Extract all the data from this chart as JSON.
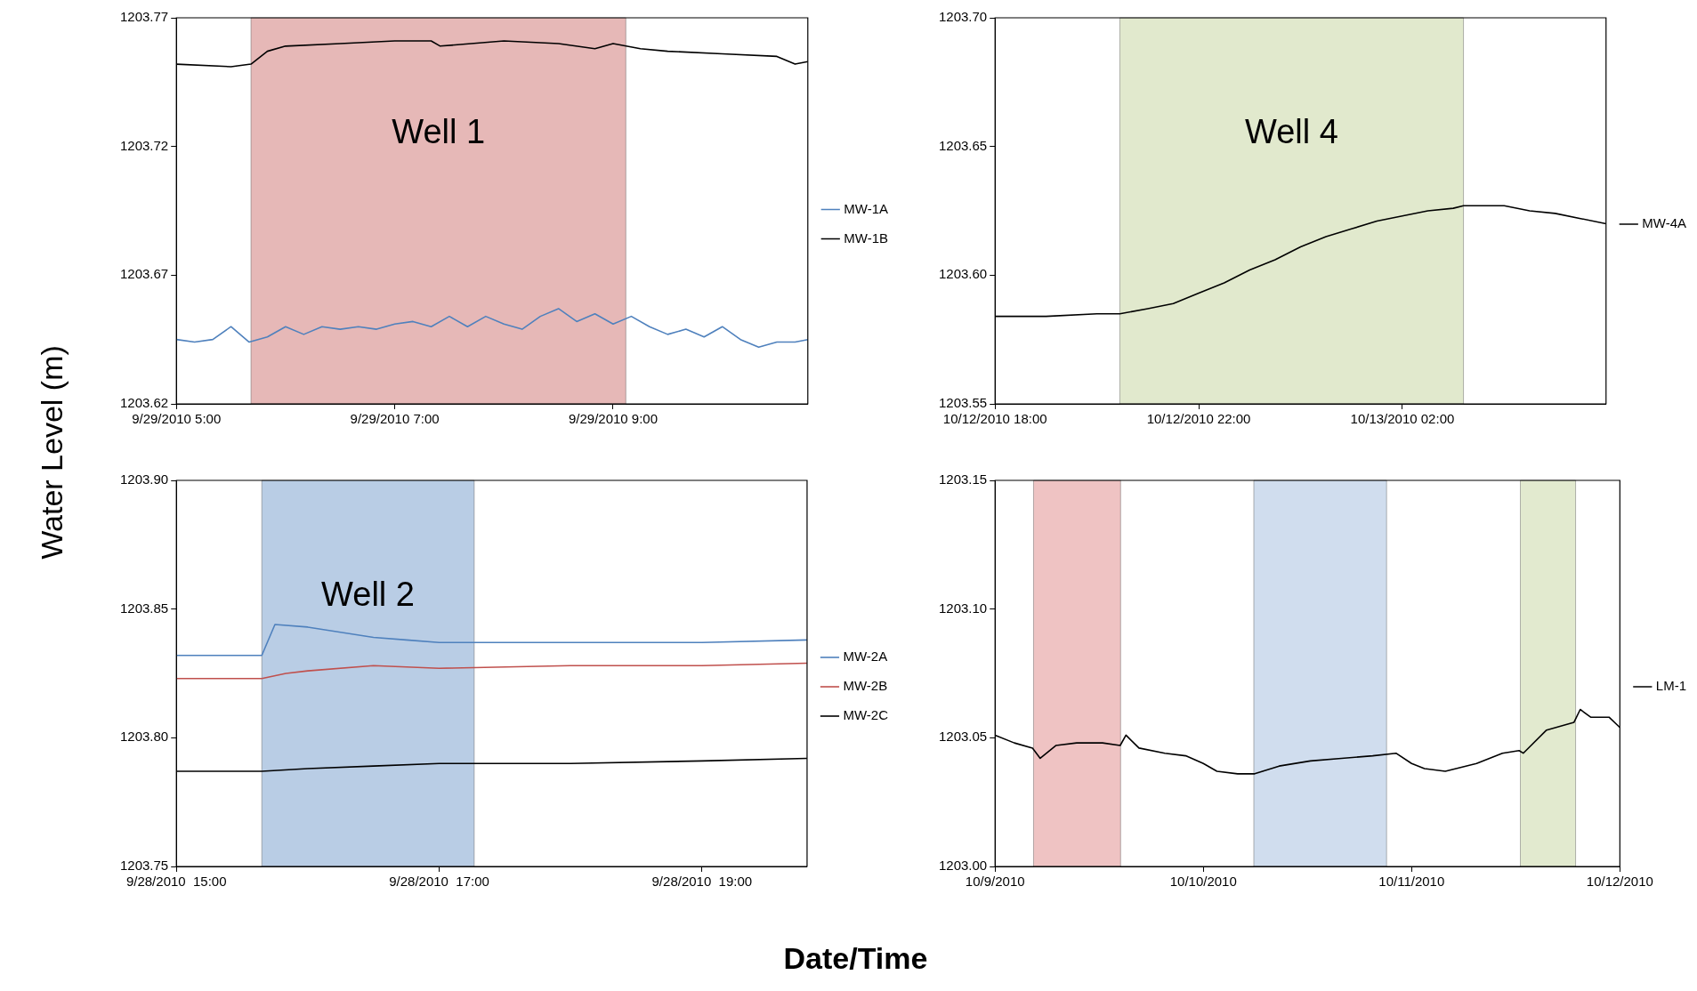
{
  "chart_data": [
    {
      "type": "line",
      "xlabel": "Date/Time",
      "ylabel": "Water Level (m)",
      "legend": "right",
      "marker": "none",
      "line_style": "solid",
      "grid": false,
      "xlim": [
        "2010-09-29T05:00",
        "2010-09-29T10:47"
      ],
      "xticks": [
        {
          "value": "2010-09-29T05:00",
          "label": "9/29/2010 5:00"
        },
        {
          "value": "2010-09-29T07:00",
          "label": "9/29/2010 7:00"
        },
        {
          "value": "2010-09-29T09:00",
          "label": "9/29/2010 9:00"
        }
      ],
      "ylim": [
        1203.62,
        1203.77
      ],
      "yticks": [
        {
          "value": 1203.62,
          "label": "1203.62"
        },
        {
          "value": 1203.67,
          "label": "1203.67"
        },
        {
          "value": 1203.72,
          "label": "1203.72"
        },
        {
          "value": 1203.77,
          "label": "1203.77"
        }
      ],
      "bands": [
        {
          "axis": "x",
          "from": "2010-09-29T05:41",
          "to": "2010-09-29T09:07",
          "color": "#e6b8b7",
          "label": "Well 1"
        }
      ],
      "series": [
        {
          "name": "MW-1A",
          "color": "#4f81bd",
          "x": [
            "2010-09-29T05:00",
            "2010-09-29T05:10",
            "2010-09-29T05:20",
            "2010-09-29T05:30",
            "2010-09-29T05:40",
            "2010-09-29T05:50",
            "2010-09-29T06:00",
            "2010-09-29T06:10",
            "2010-09-29T06:20",
            "2010-09-29T06:30",
            "2010-09-29T06:40",
            "2010-09-29T06:50",
            "2010-09-29T07:00",
            "2010-09-29T07:10",
            "2010-09-29T07:20",
            "2010-09-29T07:30",
            "2010-09-29T07:40",
            "2010-09-29T07:50",
            "2010-09-29T08:00",
            "2010-09-29T08:10",
            "2010-09-29T08:20",
            "2010-09-29T08:30",
            "2010-09-29T08:40",
            "2010-09-29T08:50",
            "2010-09-29T09:00",
            "2010-09-29T09:10",
            "2010-09-29T09:20",
            "2010-09-29T09:30",
            "2010-09-29T09:40",
            "2010-09-29T09:50",
            "2010-09-29T10:00",
            "2010-09-29T10:10",
            "2010-09-29T10:20",
            "2010-09-29T10:30",
            "2010-09-29T10:40",
            "2010-09-29T10:47"
          ],
          "values": [
            1203.645,
            1203.644,
            1203.645,
            1203.65,
            1203.644,
            1203.646,
            1203.65,
            1203.647,
            1203.65,
            1203.649,
            1203.65,
            1203.649,
            1203.651,
            1203.652,
            1203.65,
            1203.654,
            1203.65,
            1203.654,
            1203.651,
            1203.649,
            1203.654,
            1203.657,
            1203.652,
            1203.655,
            1203.651,
            1203.654,
            1203.65,
            1203.647,
            1203.649,
            1203.646,
            1203.65,
            1203.645,
            1203.642,
            1203.644,
            1203.644,
            1203.645
          ]
        },
        {
          "name": "MW-1B",
          "color": "#000000",
          "x": [
            "2010-09-29T05:00",
            "2010-09-29T05:30",
            "2010-09-29T05:41",
            "2010-09-29T05:50",
            "2010-09-29T06:00",
            "2010-09-29T06:30",
            "2010-09-29T07:00",
            "2010-09-29T07:20",
            "2010-09-29T07:25",
            "2010-09-29T08:00",
            "2010-09-29T08:30",
            "2010-09-29T08:50",
            "2010-09-29T09:00",
            "2010-09-29T09:15",
            "2010-09-29T09:30",
            "2010-09-29T10:00",
            "2010-09-29T10:30",
            "2010-09-29T10:40",
            "2010-09-29T10:47"
          ],
          "values": [
            1203.752,
            1203.751,
            1203.752,
            1203.757,
            1203.759,
            1203.76,
            1203.761,
            1203.761,
            1203.759,
            1203.761,
            1203.76,
            1203.758,
            1203.76,
            1203.758,
            1203.757,
            1203.756,
            1203.755,
            1203.752,
            1203.753
          ]
        }
      ]
    },
    {
      "type": "line",
      "legend": "right",
      "marker": "none",
      "line_style": "solid",
      "grid": false,
      "xlim": [
        "2010-10-12T18:00",
        "2010-10-13T06:00"
      ],
      "xticks": [
        {
          "value": "2010-10-12T18:00",
          "label": "10/12/2010 18:00"
        },
        {
          "value": "2010-10-12T22:00",
          "label": "10/12/2010 22:00"
        },
        {
          "value": "2010-10-13T02:00",
          "label": "10/13/2010 02:00"
        }
      ],
      "ylim": [
        1203.55,
        1203.7
      ],
      "yticks": [
        {
          "value": 1203.55,
          "label": "1203.55"
        },
        {
          "value": 1203.6,
          "label": "1203.60"
        },
        {
          "value": 1203.65,
          "label": "1203.65"
        },
        {
          "value": 1203.7,
          "label": "1203.70"
        }
      ],
      "bands": [
        {
          "axis": "x",
          "from": "2010-10-12T20:27",
          "to": "2010-10-13T03:12",
          "color": "#e1e9cd",
          "label": "Well 4"
        }
      ],
      "series": [
        {
          "name": "MW-4A",
          "color": "#000000",
          "x": [
            "2010-10-12T18:00",
            "2010-10-12T19:00",
            "2010-10-12T20:00",
            "2010-10-12T20:27",
            "2010-10-12T21:00",
            "2010-10-12T21:30",
            "2010-10-12T22:00",
            "2010-10-12T22:30",
            "2010-10-12T23:00",
            "2010-10-12T23:30",
            "2010-10-13T00:00",
            "2010-10-13T00:30",
            "2010-10-13T01:00",
            "2010-10-13T01:30",
            "2010-10-13T02:00",
            "2010-10-13T02:30",
            "2010-10-13T03:00",
            "2010-10-13T03:12",
            "2010-10-13T04:00",
            "2010-10-13T04:30",
            "2010-10-13T05:00",
            "2010-10-13T05:30",
            "2010-10-13T06:00"
          ],
          "values": [
            1203.584,
            1203.584,
            1203.585,
            1203.585,
            1203.587,
            1203.589,
            1203.593,
            1203.597,
            1203.602,
            1203.606,
            1203.611,
            1203.615,
            1203.618,
            1203.621,
            1203.623,
            1203.625,
            1203.626,
            1203.627,
            1203.627,
            1203.625,
            1203.624,
            1203.622,
            1203.62
          ]
        }
      ]
    },
    {
      "type": "line",
      "legend": "right",
      "marker": "none",
      "line_style": "solid",
      "grid": false,
      "xlim": [
        "2010-09-28T15:00",
        "2010-09-28T19:48"
      ],
      "xticks": [
        {
          "value": "2010-09-28T15:00",
          "label": "9/28/2010  15:00"
        },
        {
          "value": "2010-09-28T17:00",
          "label": "9/28/2010  17:00"
        },
        {
          "value": "2010-09-28T19:00",
          "label": "9/28/2010  19:00"
        }
      ],
      "ylim": [
        1203.75,
        1203.9
      ],
      "yticks": [
        {
          "value": 1203.75,
          "label": "1203.75"
        },
        {
          "value": 1203.8,
          "label": "1203.80"
        },
        {
          "value": 1203.85,
          "label": "1203.85"
        },
        {
          "value": 1203.9,
          "label": "1203.90"
        }
      ],
      "bands": [
        {
          "axis": "x",
          "from": "2010-09-28T15:39",
          "to": "2010-09-28T17:16",
          "color": "#b9cde5",
          "label": "Well 2"
        }
      ],
      "series": [
        {
          "name": "MW-2A",
          "color": "#4f81bd",
          "x": [
            "2010-09-28T15:00",
            "2010-09-28T15:39",
            "2010-09-28T15:45",
            "2010-09-28T16:00",
            "2010-09-28T16:15",
            "2010-09-28T16:30",
            "2010-09-28T16:45",
            "2010-09-28T17:00",
            "2010-09-28T17:15",
            "2010-09-28T18:00",
            "2010-09-28T19:00",
            "2010-09-28T19:48"
          ],
          "values": [
            1203.832,
            1203.832,
            1203.844,
            1203.843,
            1203.841,
            1203.839,
            1203.838,
            1203.837,
            1203.837,
            1203.837,
            1203.837,
            1203.838
          ]
        },
        {
          "name": "MW-2B",
          "color": "#c0504d",
          "x": [
            "2010-09-28T15:00",
            "2010-09-28T15:39",
            "2010-09-28T15:50",
            "2010-09-28T16:00",
            "2010-09-28T16:30",
            "2010-09-28T17:00",
            "2010-09-28T18:00",
            "2010-09-28T19:00",
            "2010-09-28T19:48"
          ],
          "values": [
            1203.823,
            1203.823,
            1203.825,
            1203.826,
            1203.828,
            1203.827,
            1203.828,
            1203.828,
            1203.829
          ]
        },
        {
          "name": "MW-2C",
          "color": "#000000",
          "x": [
            "2010-09-28T15:00",
            "2010-09-28T15:39",
            "2010-09-28T16:00",
            "2010-09-28T16:30",
            "2010-09-28T17:00",
            "2010-09-28T18:00",
            "2010-09-28T19:00",
            "2010-09-28T19:48"
          ],
          "values": [
            1203.787,
            1203.787,
            1203.788,
            1203.789,
            1203.79,
            1203.79,
            1203.791,
            1203.792
          ]
        }
      ]
    },
    {
      "type": "line",
      "legend": "right",
      "marker": "none",
      "line_style": "solid",
      "grid": false,
      "xlim": [
        "2010-10-09",
        "2010-10-12"
      ],
      "xticks": [
        {
          "value": "2010-10-09",
          "label": "10/9/2010"
        },
        {
          "value": "2010-10-10",
          "label": "10/10/2010"
        },
        {
          "value": "2010-10-11",
          "label": "10/11/2010"
        },
        {
          "value": "2010-10-12",
          "label": "10/12/2010"
        }
      ],
      "ylim": [
        1203,
        1203.15
      ],
      "yticks": [
        {
          "value": 1203,
          "label": "1203.00"
        },
        {
          "value": 1203.05,
          "label": "1203.05"
        },
        {
          "value": 1203.1,
          "label": "1203.10"
        },
        {
          "value": 1203.15,
          "label": "1203.15"
        }
      ],
      "bands": [
        {
          "axis": "x",
          "from": "2010-10-09T04:26",
          "to": "2010-10-09T14:28",
          "color": "#efc3c3"
        },
        {
          "axis": "x",
          "from": "2010-10-10T05:49",
          "to": "2010-10-10T21:07",
          "color": "#d0ddee"
        },
        {
          "axis": "x",
          "from": "2010-10-11T12:32",
          "to": "2010-10-11T18:54",
          "color": "#e2eacf"
        }
      ],
      "series": [
        {
          "name": "LM-1",
          "color": "#000000",
          "x": [
            "2010-10-09T00:00",
            "2010-10-09T02:13",
            "2010-10-09T04:19",
            "2010-10-09T05:12",
            "2010-10-09T07:00",
            "2010-10-09T09:24",
            "2010-10-09T12:23",
            "2010-10-09T14:25",
            "2010-10-09T15:05",
            "2010-10-09T16:35",
            "2010-10-09T19:34",
            "2010-10-09T21:58",
            "2010-10-10T00:00",
            "2010-10-10T01:34",
            "2010-10-10T03:57",
            "2010-10-10T05:55",
            "2010-10-10T08:44",
            "2010-10-10T12:20",
            "2010-10-10T15:55",
            "2010-10-10T19:31",
            "2010-10-10T22:12",
            "2010-10-11T00:00",
            "2010-10-11T01:29",
            "2010-10-11T03:53",
            "2010-10-11T07:29",
            "2010-10-11T10:28",
            "2010-10-11T12:23",
            "2010-10-11T12:52",
            "2010-10-11T15:33",
            "2010-10-11T18:43",
            "2010-10-11T19:26",
            "2010-10-11T20:38",
            "2010-10-11T22:45",
            "2010-10-12T00:00"
          ],
          "values": [
            1203.051,
            1203.048,
            1203.046,
            1203.042,
            1203.047,
            1203.048,
            1203.048,
            1203.047,
            1203.051,
            1203.046,
            1203.044,
            1203.043,
            1203.04,
            1203.037,
            1203.036,
            1203.036,
            1203.039,
            1203.041,
            1203.042,
            1203.043,
            1203.044,
            1203.04,
            1203.038,
            1203.037,
            1203.04,
            1203.044,
            1203.045,
            1203.044,
            1203.053,
            1203.056,
            1203.061,
            1203.058,
            1203.058,
            1203.054
          ]
        }
      ]
    }
  ]
}
